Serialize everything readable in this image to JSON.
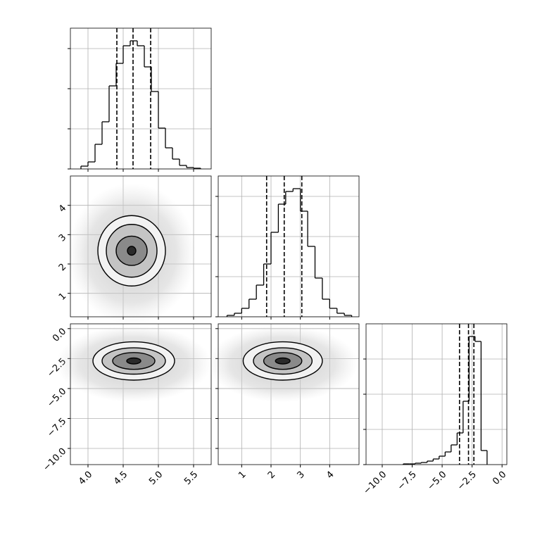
{
  "chart_data": {
    "type": "corner",
    "color": "#000000",
    "grid": true,
    "axes": [
      {
        "lim": [
          3.75,
          5.75
        ],
        "ticks": [
          {
            "value": 4,
            "label": "4.0"
          },
          4.5,
          {
            "value": 5,
            "label": "5.0"
          },
          5.5
        ]
      },
      {
        "lim": [
          0.2,
          5.0
        ],
        "ticks": [
          1,
          2,
          3,
          4
        ]
      },
      {
        "lim": [
          -11.35,
          0.4
        ],
        "ticks": [
          {
            "value": -10,
            "label": "−10.0"
          },
          {
            "value": -7.5,
            "label": "−7.5"
          },
          {
            "value": -5,
            "label": "−5.0"
          },
          {
            "value": -2.5,
            "label": "−2.5"
          },
          {
            "value": 0,
            "label": "0.0"
          }
        ]
      }
    ],
    "histograms": [
      {
        "bins": [
          3.9,
          4.0,
          4.1,
          4.2,
          4.3,
          4.4,
          4.5,
          4.6,
          4.7,
          4.8,
          4.9,
          5.0,
          5.1,
          5.2,
          5.3,
          5.4,
          5.5,
          5.6
        ],
        "counts": [
          20,
          50,
          175,
          335,
          590,
          750,
          875,
          910,
          875,
          725,
          550,
          290,
          150,
          70,
          25,
          10,
          5
        ],
        "ylim": [
          0,
          1000
        ],
        "yticks": [
          0,
          285,
          570,
          855
        ],
        "quantiles": [
          4.41,
          4.64,
          4.89
        ]
      },
      {
        "bins": [
          0.5,
          0.75,
          1.0,
          1.25,
          1.5,
          1.75,
          2.0,
          2.25,
          2.5,
          2.75,
          3.0,
          3.25,
          3.5,
          3.75,
          4.0,
          4.25,
          4.5,
          4.75
        ],
        "counts": [
          10,
          25,
          60,
          125,
          225,
          375,
          600,
          800,
          890,
          910,
          750,
          500,
          275,
          125,
          60,
          25,
          10
        ],
        "ylim": [
          0,
          1000
        ],
        "yticks": [
          0,
          285,
          570,
          855
        ],
        "quantiles": [
          1.85,
          2.45,
          3.05
        ]
      },
      {
        "bins": [
          -8.25,
          -7.75,
          -7.25,
          -6.75,
          -6.25,
          -5.75,
          -5.25,
          -4.75,
          -4.25,
          -3.75,
          -3.25,
          -2.75,
          -2.25,
          -1.75,
          -1.25
        ],
        "counts": [
          5,
          5,
          10,
          15,
          25,
          40,
          60,
          90,
          140,
          225,
          450,
          910,
          875,
          100
        ],
        "ylim": [
          0,
          1000
        ],
        "yticks": [
          0,
          250,
          500,
          750
        ],
        "quantiles": [
          -3.55,
          -2.8,
          -2.35
        ]
      }
    ],
    "contours": [
      {
        "center": [
          4.62,
          2.45
        ],
        "rx": [
          0.48,
          0.36,
          0.22,
          0.06
        ],
        "ry": [
          1.2,
          0.9,
          0.5,
          0.15
        ]
      },
      {
        "center": [
          4.65,
          -2.7
        ],
        "rx": [
          0.58,
          0.45,
          0.3,
          0.1
        ],
        "ry": [
          1.6,
          1.1,
          0.7,
          0.25
        ]
      },
      {
        "center": [
          2.4,
          -2.7
        ],
        "rx": [
          1.35,
          1.0,
          0.65,
          0.25
        ],
        "ry": [
          1.6,
          1.1,
          0.7,
          0.25
        ]
      }
    ]
  }
}
